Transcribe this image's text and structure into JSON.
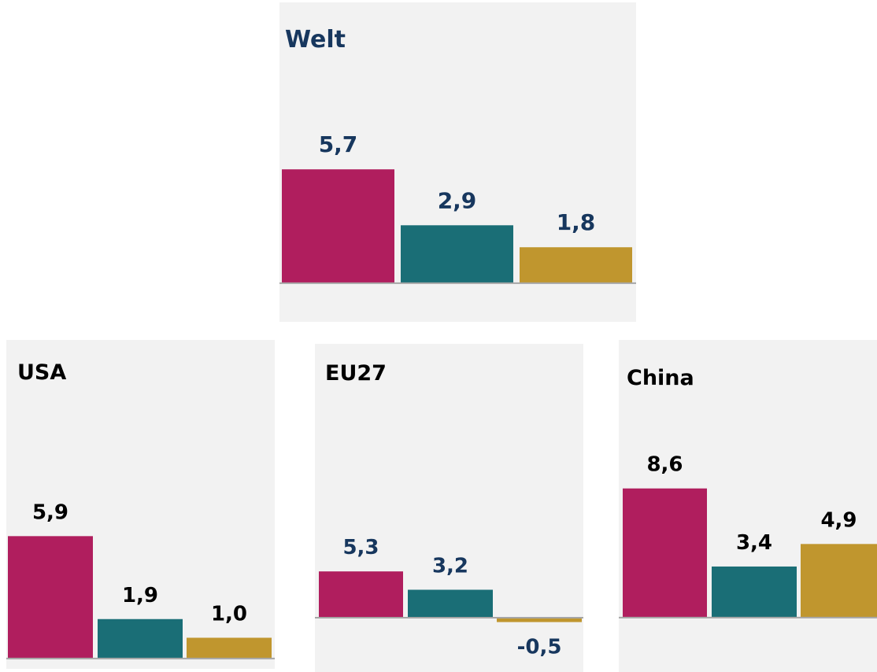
{
  "chart_data": [
    {
      "type": "bar",
      "title": "Welt",
      "categories": [
        null,
        null,
        null
      ],
      "values": [
        5.7,
        2.9,
        1.8
      ],
      "value_labels": [
        "5,7",
        "2,9",
        "1,8"
      ],
      "colors": [
        "#b01e5e",
        "#1a6e76",
        "#c0962e"
      ],
      "ylim": [
        -1.5,
        7.5
      ]
    },
    {
      "type": "bar",
      "title": "USA",
      "categories": [
        null,
        null,
        null
      ],
      "values": [
        5.9,
        1.9,
        1.0
      ],
      "value_labels": [
        "5,9",
        "1,9",
        "1,0"
      ],
      "colors": [
        "#b01e5e",
        "#1a6e76",
        "#c0962e"
      ],
      "ylim": [
        -0.5,
        8
      ]
    },
    {
      "type": "bar",
      "title": "EU27",
      "categories": [
        null,
        null,
        null
      ],
      "values": [
        5.3,
        3.2,
        -0.5
      ],
      "value_labels": [
        "5,3",
        "3,2",
        "-0,5"
      ],
      "colors": [
        "#b01e5e",
        "#1a6e76",
        "#c0962e"
      ],
      "ylim": [
        -5,
        10
      ]
    },
    {
      "type": "bar",
      "title": "China",
      "categories": [
        null,
        null,
        null
      ],
      "values": [
        8.6,
        3.4,
        4.9
      ],
      "value_labels": [
        "8,6",
        "3,4",
        "4,9"
      ],
      "colors": [
        "#b01e5e",
        "#1a6e76",
        "#c0962e"
      ],
      "ylim": [
        -2,
        10
      ]
    }
  ]
}
